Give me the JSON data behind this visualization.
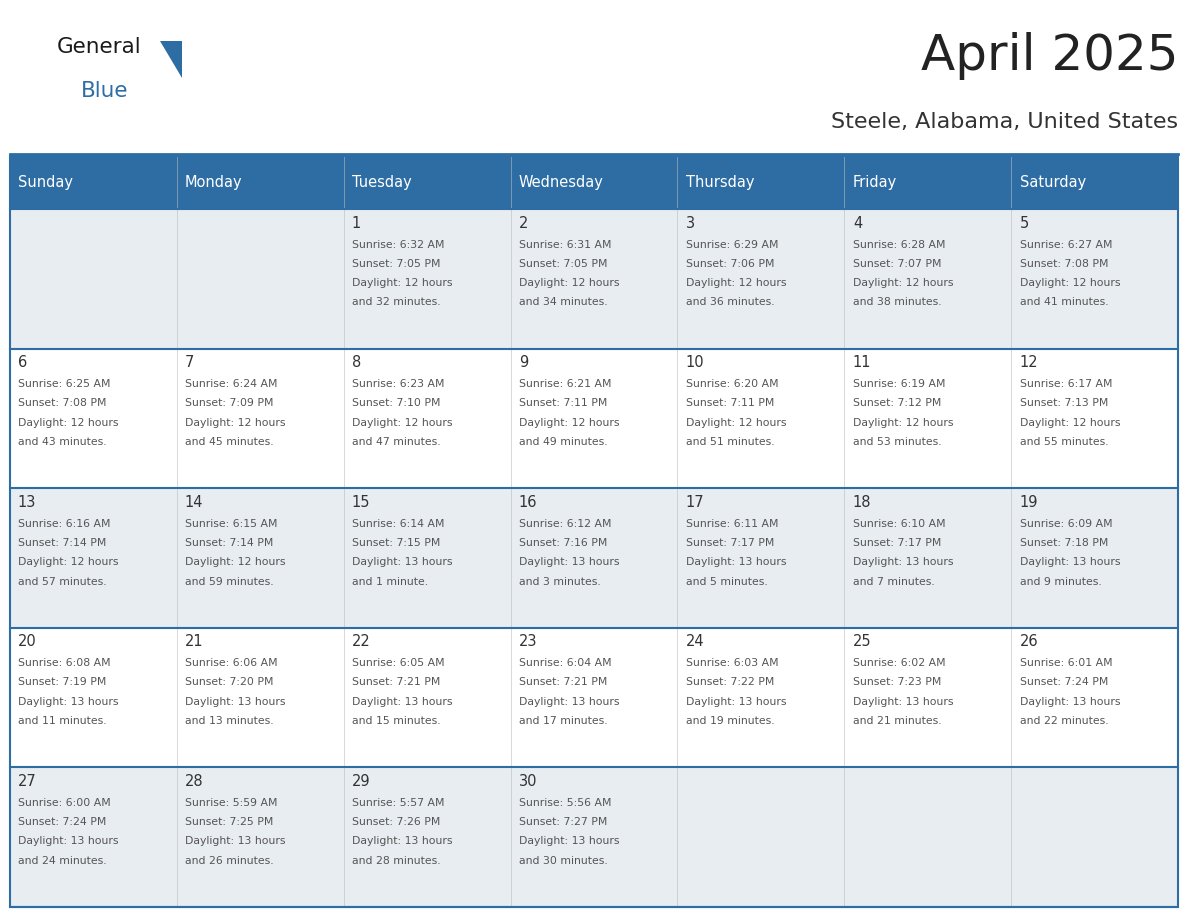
{
  "title": "April 2025",
  "subtitle": "Steele, Alabama, United States",
  "header_bg": "#2E6DA4",
  "header_text_color": "#FFFFFF",
  "row_bg_odd": "#E8EDF2",
  "row_bg_even": "#FFFFFF",
  "border_color": "#2E6DA4",
  "inner_line_color": "#CCCCCC",
  "day_names": [
    "Sunday",
    "Monday",
    "Tuesday",
    "Wednesday",
    "Thursday",
    "Friday",
    "Saturday"
  ],
  "title_color": "#222222",
  "subtitle_color": "#333333",
  "day_number_color": "#333333",
  "cell_text_color": "#555555",
  "logo_general_color": "#1a1a1a",
  "logo_blue_color": "#2E6DA4",
  "logo_triangle_color": "#2E6DA4",
  "weeks": [
    [
      {
        "day": "",
        "text": ""
      },
      {
        "day": "",
        "text": ""
      },
      {
        "day": "1",
        "text": "Sunrise: 6:32 AM\nSunset: 7:05 PM\nDaylight: 12 hours\nand 32 minutes."
      },
      {
        "day": "2",
        "text": "Sunrise: 6:31 AM\nSunset: 7:05 PM\nDaylight: 12 hours\nand 34 minutes."
      },
      {
        "day": "3",
        "text": "Sunrise: 6:29 AM\nSunset: 7:06 PM\nDaylight: 12 hours\nand 36 minutes."
      },
      {
        "day": "4",
        "text": "Sunrise: 6:28 AM\nSunset: 7:07 PM\nDaylight: 12 hours\nand 38 minutes."
      },
      {
        "day": "5",
        "text": "Sunrise: 6:27 AM\nSunset: 7:08 PM\nDaylight: 12 hours\nand 41 minutes."
      }
    ],
    [
      {
        "day": "6",
        "text": "Sunrise: 6:25 AM\nSunset: 7:08 PM\nDaylight: 12 hours\nand 43 minutes."
      },
      {
        "day": "7",
        "text": "Sunrise: 6:24 AM\nSunset: 7:09 PM\nDaylight: 12 hours\nand 45 minutes."
      },
      {
        "day": "8",
        "text": "Sunrise: 6:23 AM\nSunset: 7:10 PM\nDaylight: 12 hours\nand 47 minutes."
      },
      {
        "day": "9",
        "text": "Sunrise: 6:21 AM\nSunset: 7:11 PM\nDaylight: 12 hours\nand 49 minutes."
      },
      {
        "day": "10",
        "text": "Sunrise: 6:20 AM\nSunset: 7:11 PM\nDaylight: 12 hours\nand 51 minutes."
      },
      {
        "day": "11",
        "text": "Sunrise: 6:19 AM\nSunset: 7:12 PM\nDaylight: 12 hours\nand 53 minutes."
      },
      {
        "day": "12",
        "text": "Sunrise: 6:17 AM\nSunset: 7:13 PM\nDaylight: 12 hours\nand 55 minutes."
      }
    ],
    [
      {
        "day": "13",
        "text": "Sunrise: 6:16 AM\nSunset: 7:14 PM\nDaylight: 12 hours\nand 57 minutes."
      },
      {
        "day": "14",
        "text": "Sunrise: 6:15 AM\nSunset: 7:14 PM\nDaylight: 12 hours\nand 59 minutes."
      },
      {
        "day": "15",
        "text": "Sunrise: 6:14 AM\nSunset: 7:15 PM\nDaylight: 13 hours\nand 1 minute."
      },
      {
        "day": "16",
        "text": "Sunrise: 6:12 AM\nSunset: 7:16 PM\nDaylight: 13 hours\nand 3 minutes."
      },
      {
        "day": "17",
        "text": "Sunrise: 6:11 AM\nSunset: 7:17 PM\nDaylight: 13 hours\nand 5 minutes."
      },
      {
        "day": "18",
        "text": "Sunrise: 6:10 AM\nSunset: 7:17 PM\nDaylight: 13 hours\nand 7 minutes."
      },
      {
        "day": "19",
        "text": "Sunrise: 6:09 AM\nSunset: 7:18 PM\nDaylight: 13 hours\nand 9 minutes."
      }
    ],
    [
      {
        "day": "20",
        "text": "Sunrise: 6:08 AM\nSunset: 7:19 PM\nDaylight: 13 hours\nand 11 minutes."
      },
      {
        "day": "21",
        "text": "Sunrise: 6:06 AM\nSunset: 7:20 PM\nDaylight: 13 hours\nand 13 minutes."
      },
      {
        "day": "22",
        "text": "Sunrise: 6:05 AM\nSunset: 7:21 PM\nDaylight: 13 hours\nand 15 minutes."
      },
      {
        "day": "23",
        "text": "Sunrise: 6:04 AM\nSunset: 7:21 PM\nDaylight: 13 hours\nand 17 minutes."
      },
      {
        "day": "24",
        "text": "Sunrise: 6:03 AM\nSunset: 7:22 PM\nDaylight: 13 hours\nand 19 minutes."
      },
      {
        "day": "25",
        "text": "Sunrise: 6:02 AM\nSunset: 7:23 PM\nDaylight: 13 hours\nand 21 minutes."
      },
      {
        "day": "26",
        "text": "Sunrise: 6:01 AM\nSunset: 7:24 PM\nDaylight: 13 hours\nand 22 minutes."
      }
    ],
    [
      {
        "day": "27",
        "text": "Sunrise: 6:00 AM\nSunset: 7:24 PM\nDaylight: 13 hours\nand 24 minutes."
      },
      {
        "day": "28",
        "text": "Sunrise: 5:59 AM\nSunset: 7:25 PM\nDaylight: 13 hours\nand 26 minutes."
      },
      {
        "day": "29",
        "text": "Sunrise: 5:57 AM\nSunset: 7:26 PM\nDaylight: 13 hours\nand 28 minutes."
      },
      {
        "day": "30",
        "text": "Sunrise: 5:56 AM\nSunset: 7:27 PM\nDaylight: 13 hours\nand 30 minutes."
      },
      {
        "day": "",
        "text": ""
      },
      {
        "day": "",
        "text": ""
      },
      {
        "day": "",
        "text": ""
      }
    ]
  ]
}
